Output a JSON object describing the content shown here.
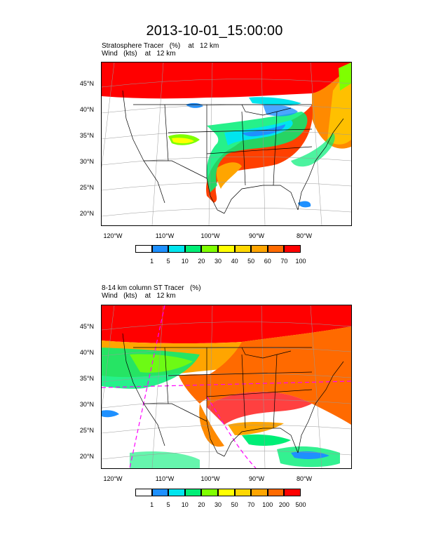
{
  "title": "2013-10-01_15:00:00",
  "panel_top": {
    "line1": "Stratosphere Tracer   (%)    at   12 km",
    "line2": "Wind   (kts)    at   12 km",
    "lat_labels": [
      "45°N",
      "40°N",
      "35°N",
      "30°N",
      "25°N",
      "20°N"
    ],
    "lon_labels": [
      "120°W",
      "110°W",
      "100°W",
      "90°W",
      "80°W"
    ],
    "colorbar": {
      "colors": [
        "#ffffff",
        "#1e90ff",
        "#00e5ee",
        "#00ee76",
        "#7fff00",
        "#ffff00",
        "#ffd700",
        "#ffa500",
        "#ff6a00",
        "#ff0000"
      ],
      "labels": [
        "1",
        "5",
        "10",
        "20",
        "30",
        "40",
        "50",
        "60",
        "70",
        "100"
      ]
    }
  },
  "panel_bottom": {
    "line1": "8-14 km column ST Tracer   (%)",
    "line2": "Wind   (kts)    at   12 km",
    "lat_labels": [
      "45°N",
      "40°N",
      "35°N",
      "30°N",
      "25°N",
      "20°N"
    ],
    "lon_labels": [
      "120°W",
      "110°W",
      "100°W",
      "90°W",
      "80°W"
    ],
    "colorbar": {
      "colors": [
        "#ffffff",
        "#1e90ff",
        "#00e5ee",
        "#00ee76",
        "#7fff00",
        "#ffff00",
        "#ffd700",
        "#ffa500",
        "#ff6a00",
        "#ff0000"
      ],
      "labels": [
        "1",
        "5",
        "10",
        "20",
        "30",
        "50",
        "70",
        "100",
        "200",
        "500"
      ]
    }
  }
}
